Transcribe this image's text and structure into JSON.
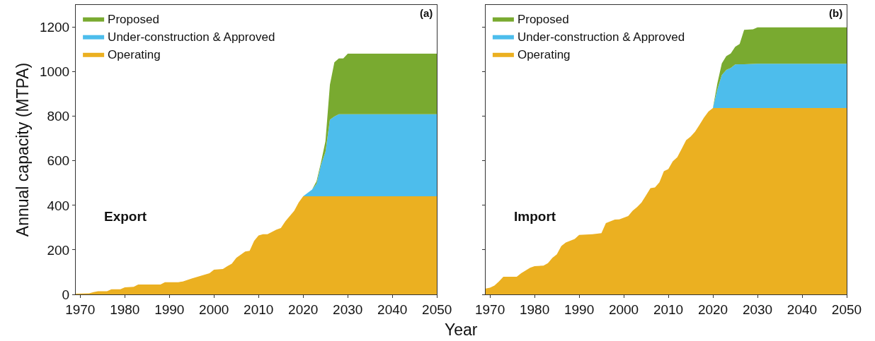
{
  "chart_data": [
    {
      "type": "area",
      "stacked": true,
      "ylabel": "Annual capacity (MTPA)",
      "xlabel": "Year",
      "annotations": [
        "(a)",
        "Export"
      ],
      "legend": "top left",
      "x": [
        1969,
        1972,
        1973,
        1974,
        1976,
        1977,
        1979,
        1980,
        1982,
        1983,
        1988,
        1989,
        1992,
        1993,
        1995,
        1997,
        1999,
        2000,
        2002,
        2003,
        2004,
        2005,
        2007,
        2008,
        2009,
        2010,
        2011,
        2012,
        2014,
        2015,
        2016,
        2018,
        2019,
        2020,
        2022,
        2023,
        2024,
        2025,
        2026,
        2027,
        2028,
        2029,
        2030,
        2050
      ],
      "xlim": [
        1969,
        2050
      ],
      "xticks": [
        1970,
        1980,
        1990,
        2000,
        2010,
        2020,
        2030,
        2040,
        2050
      ],
      "ylim": [
        0,
        1300
      ],
      "yticks": [
        0,
        200,
        400,
        600,
        800,
        1000,
        1200
      ],
      "series": [
        {
          "name": "Operating",
          "color": "#ebb021",
          "values": [
            3,
            5,
            10,
            14,
            14,
            23,
            23,
            32,
            34,
            44,
            44,
            55,
            55,
            58,
            71,
            83,
            95,
            111,
            114,
            127,
            138,
            164,
            193,
            196,
            240,
            265,
            270,
            270,
            291,
            298,
            328,
            376,
            413,
            441,
            441,
            441,
            441,
            441,
            441,
            441,
            441,
            441,
            441,
            441
          ]
        },
        {
          "name": "Under-construction & Approved",
          "color": "#4dbdec",
          "values": [
            0,
            0,
            0,
            0,
            0,
            0,
            0,
            0,
            0,
            0,
            0,
            0,
            0,
            0,
            0,
            0,
            0,
            0,
            0,
            0,
            0,
            0,
            0,
            0,
            0,
            0,
            0,
            0,
            0,
            0,
            0,
            0,
            0,
            0,
            30,
            56,
            141,
            199,
            344,
            358,
            368,
            368,
            368,
            368
          ]
        },
        {
          "name": "Proposed",
          "color": "#79aa30",
          "values": [
            0,
            0,
            0,
            0,
            0,
            0,
            0,
            0,
            0,
            0,
            0,
            0,
            0,
            0,
            0,
            0,
            0,
            0,
            0,
            0,
            0,
            0,
            0,
            0,
            0,
            0,
            0,
            0,
            0,
            0,
            0,
            0,
            0,
            0,
            0,
            11,
            11,
            48,
            157,
            243,
            251,
            251,
            272,
            272
          ]
        }
      ]
    },
    {
      "type": "area",
      "stacked": true,
      "annotations": [
        "(b)",
        "Import"
      ],
      "legend": "top left",
      "tick_labels": "x",
      "x": [
        1969,
        1970,
        1971,
        1972,
        1973,
        1976,
        1977,
        1979,
        1980,
        1982,
        1983,
        1984,
        1985,
        1986,
        1987,
        1989,
        1990,
        1993,
        1994,
        1995,
        1996,
        1998,
        1999,
        2001,
        2002,
        2003,
        2004,
        2005,
        2006,
        2007,
        2008,
        2009,
        2010,
        2011,
        2012,
        2013,
        2014,
        2015,
        2016,
        2017,
        2018,
        2019,
        2020,
        2021,
        2022,
        2023,
        2024,
        2025,
        2026,
        2027,
        2029,
        2030,
        2050
      ],
      "xlim": [
        1969,
        2050
      ],
      "xticks": [
        1970,
        1980,
        1990,
        2000,
        2010,
        2020,
        2030,
        2040,
        2050
      ],
      "ylim": [
        0,
        1300
      ],
      "yticks": [
        0,
        200,
        400,
        600,
        800,
        1000,
        1200
      ],
      "series": [
        {
          "name": "Operating",
          "color": "#ebb021",
          "values": [
            26,
            30,
            40,
            58,
            79,
            79,
            95,
            120,
            127,
            129,
            140,
            164,
            180,
            217,
            233,
            249,
            267,
            270,
            273,
            275,
            320,
            336,
            337,
            352,
            376,
            392,
            413,
            445,
            477,
            480,
            503,
            553,
            563,
            598,
            616,
            654,
            693,
            709,
            731,
            762,
            794,
            821,
            837,
            837,
            837,
            837,
            837,
            837,
            837,
            837,
            837,
            837,
            837
          ]
        },
        {
          "name": "Under-construction & Approved",
          "color": "#4dbdec",
          "values": [
            0,
            0,
            0,
            0,
            0,
            0,
            0,
            0,
            0,
            0,
            0,
            0,
            0,
            0,
            0,
            0,
            0,
            0,
            0,
            0,
            0,
            0,
            0,
            0,
            0,
            0,
            0,
            0,
            0,
            0,
            0,
            0,
            0,
            0,
            0,
            0,
            0,
            0,
            0,
            0,
            0,
            0,
            0,
            84,
            148,
            171,
            180,
            196,
            197,
            197,
            198,
            199,
            199
          ]
        },
        {
          "name": "Proposed",
          "color": "#79aa30",
          "values": [
            0,
            0,
            0,
            0,
            0,
            0,
            0,
            0,
            0,
            0,
            0,
            0,
            0,
            0,
            0,
            0,
            0,
            0,
            0,
            0,
            0,
            0,
            0,
            0,
            0,
            0,
            0,
            0,
            0,
            0,
            0,
            0,
            0,
            0,
            0,
            0,
            0,
            0,
            0,
            0,
            0,
            0,
            0,
            27,
            53,
            62,
            65,
            79,
            91,
            154,
            156,
            163,
            163
          ]
        }
      ]
    }
  ]
}
